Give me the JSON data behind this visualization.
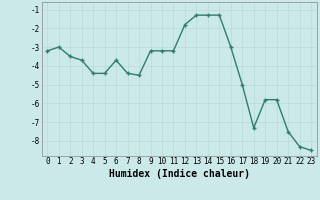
{
  "xlabel": "Humidex (Indice chaleur)",
  "x_values": [
    0,
    1,
    2,
    3,
    4,
    5,
    6,
    7,
    8,
    9,
    10,
    11,
    12,
    13,
    14,
    15,
    16,
    17,
    18,
    19,
    20,
    21,
    22,
    23
  ],
  "y_values": [
    -3.2,
    -3.0,
    -3.5,
    -3.7,
    -4.4,
    -4.4,
    -3.7,
    -4.4,
    -4.5,
    -3.2,
    -3.2,
    -3.2,
    -1.8,
    -1.3,
    -1.3,
    -1.3,
    -3.0,
    -5.0,
    -7.3,
    -5.8,
    -5.8,
    -7.5,
    -8.3,
    -8.5
  ],
  "line_color": "#2e7d6e",
  "marker": "+",
  "marker_size": 3.5,
  "marker_lw": 1.0,
  "background_color": "#cce9e9",
  "grid_color": "#b8d8d8",
  "ylim": [
    -8.8,
    -0.6
  ],
  "xlim": [
    -0.5,
    23.5
  ],
  "yticks": [
    -8,
    -7,
    -6,
    -5,
    -4,
    -3,
    -2,
    -1
  ],
  "xticks": [
    0,
    1,
    2,
    3,
    4,
    5,
    6,
    7,
    8,
    9,
    10,
    11,
    12,
    13,
    14,
    15,
    16,
    17,
    18,
    19,
    20,
    21,
    22,
    23
  ],
  "tick_fontsize": 5.5,
  "xlabel_fontsize": 7.0,
  "line_width": 1.0
}
